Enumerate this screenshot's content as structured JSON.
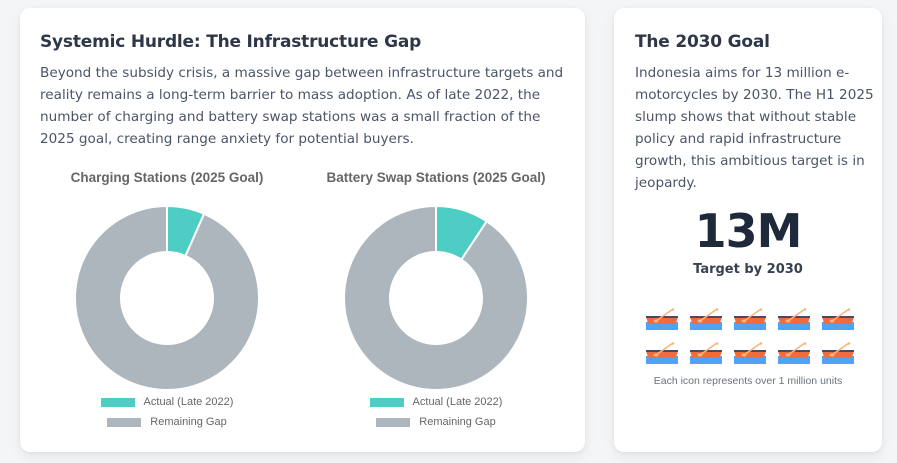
{
  "infrastructure_card": {
    "title": "Systemic Hurdle: The Infrastructure Gap",
    "body": "Beyond the subsidy crisis, a massive gap between infrastructure targets and reality remains a long-term barrier to mass adoption. As of late 2022, the number of charging and battery swap stations was a small fraction of the 2025 goal, creating range anxiety for potential buyers."
  },
  "goal_card": {
    "title": "The 2030 Goal",
    "body": "Indonesia aims for 13 million e-motorcycles by 2030. The H1 2025 slump shows that without stable policy and rapid infrastructure growth, this ambitious target is in jeopardy.",
    "big_number": "13M",
    "big_label": "Target by 2030",
    "icon_name": "canoe-icon",
    "icon_count": 10,
    "icon_caption": "Each icon represents over 1 million units"
  },
  "colors": {
    "actual": "#4ecdc4",
    "remaining": "#adb5bd",
    "icon_hull": "#f26b3a",
    "icon_water": "#4fa3f7",
    "icon_paddle": "#f5b87a",
    "icon_rim": "#4a4a5e"
  },
  "chart_data": [
    {
      "type": "pie",
      "variant": "doughnut",
      "title": "Charging Stations (2025 Goal)",
      "categories": [
        "Actual (Late 2022)",
        "Remaining Gap"
      ],
      "values": [
        6.6,
        93.4
      ],
      "unit": "% of 2025 goal (estimated from slice angle)",
      "legend": "bottom"
    },
    {
      "type": "pie",
      "variant": "doughnut",
      "title": "Battery Swap Stations (2025 Goal)",
      "categories": [
        "Actual (Late 2022)",
        "Remaining Gap"
      ],
      "values": [
        9.3,
        90.7
      ],
      "unit": "% of 2025 goal (estimated from slice angle)",
      "legend": "bottom"
    }
  ]
}
